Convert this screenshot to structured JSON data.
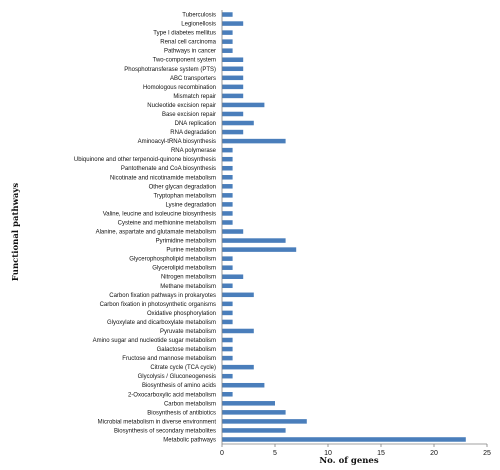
{
  "chart_data": {
    "type": "bar",
    "orientation": "horizontal",
    "xlabel": "No. of genes",
    "ylabel": "Functional pathways",
    "xlim": [
      0,
      25
    ],
    "xticks": [
      "0",
      "5",
      "10",
      "15",
      "20",
      "25"
    ],
    "grid": false,
    "bar_color": "#4a7ebb",
    "categories": [
      "Tuberculosis",
      "Legionellosis",
      "Type I diabetes mellitus",
      "Renal cell carcinoma",
      "Pathways in cancer",
      "Two-component system",
      "Phosphotransferase system (PTS)",
      "ABC transporters",
      "Homologous recombination",
      "Mismatch repair",
      "Nucleotide excision repair",
      "Base excision repair",
      "DNA replication",
      "RNA degradation",
      "Aminoacyl-tRNA biosynthesis",
      "RNA polymerase",
      "Ubiquinone and other terpenoid-quinone biosynthesis",
      "Pantothenate and CoA biosynthesis",
      "Nicotinate and nicotinamide metabolism",
      "Other glycan degradation",
      "Tryptophan metabolism",
      "Lysine degradation",
      "Valine, leucine and isoleucine biosynthesis",
      "Cysteine and methionine metabolism",
      "Alanine, aspartate and glutamate metabolism",
      "Pyrimidine metabolism",
      "Purine metabolism",
      "Glycerophospholipid metabolism",
      "Glycerolipid metabolism",
      "Nitrogen metabolism",
      "Methane metabolism",
      "Carbon fixation pathways in prokaryotes",
      "Carbon fixation in photosynthetic organisms",
      "Oxidative phosphorylation",
      "Glyoxylate and dicarboxylate metabolism",
      "Pyruvate metabolism",
      "Amino sugar and nucleotide sugar metabolism",
      "Galactose metabolism",
      "Fructose and mannose metabolism",
      "Citrate cycle (TCA cycle)",
      "Glycolysis / Gluconeogenesis",
      "Biosynthesis of amino acids",
      "2-Oxocarboxylic acid metabolism",
      "Carbon metabolism",
      "Biosynthesis of antibiotics",
      "Microbial metabolism in diverse environment",
      "Biosynthesis of secondary metabolites",
      "Metabolic pathways"
    ],
    "values": [
      1,
      2,
      1,
      1,
      1,
      2,
      2,
      2,
      2,
      2,
      4,
      2,
      3,
      2,
      6,
      1,
      1,
      1,
      1,
      1,
      1,
      1,
      1,
      1,
      2,
      6,
      7,
      1,
      1,
      2,
      1,
      3,
      1,
      1,
      1,
      3,
      1,
      1,
      1,
      3,
      1,
      4,
      1,
      5,
      6,
      8,
      6,
      23
    ]
  }
}
